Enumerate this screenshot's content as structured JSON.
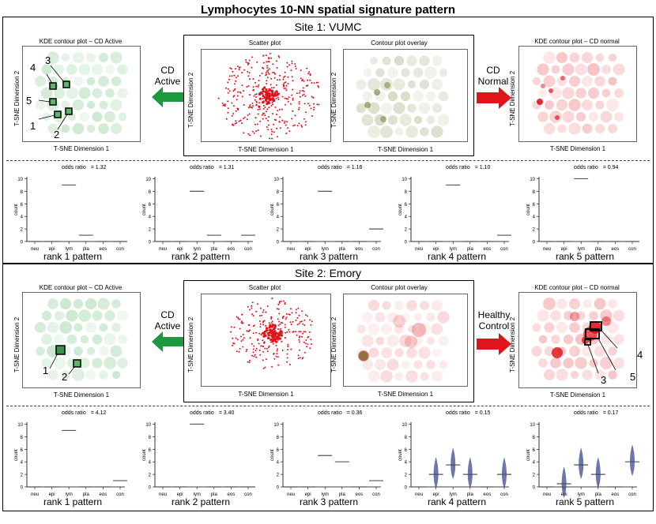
{
  "title": "Lymphocytes 10-NN spatial signature pattern",
  "sites": [
    {
      "heading": "Site 1: VUMC",
      "left_panel_title": "KDE contour plot – CD Active",
      "scatter_title": "Scatter plot",
      "overlay_title": "Contour plot overlay",
      "right_panel_title": "KDE contour plot – CD normal",
      "axis_x": "T-SNE Dimension 1",
      "axis_y": "T-SNE Dimension 2",
      "left_arrow_label": "CD Active",
      "right_arrow_label": "CD Normal",
      "left_markers": [
        "1",
        "2",
        "3",
        "4",
        "5"
      ],
      "right_markers": [],
      "patterns": [
        {
          "rank": "rank 1 pattern",
          "odds_label": "odds ratio",
          "odds_value": "= 1.32"
        },
        {
          "rank": "rank 2 pattern",
          "odds_label": "odds ratio",
          "odds_value": "= 1.31"
        },
        {
          "rank": "rank 3 pattern",
          "odds_label": "odds ratio",
          "odds_value": "= 1.16"
        },
        {
          "rank": "rank 4 pattern",
          "odds_label": "odds ratio",
          "odds_value": "= 1.10"
        },
        {
          "rank": "rank 5 pattern",
          "odds_label": "odds ratio",
          "odds_value": "= 0.94"
        }
      ]
    },
    {
      "heading": "Site 2: Emory",
      "left_panel_title": "KDE contour plot – CD Active",
      "scatter_title": "Scatter plot",
      "overlay_title": "Contour plot overlay",
      "right_panel_title": "KDE contour plot – CD normal",
      "axis_x": "T-SNE Dimension 1",
      "axis_y": "T-SNE Dimension 2",
      "left_arrow_label": "CD Active",
      "right_arrow_label": "Healthy Control",
      "left_markers": [
        "1",
        "2"
      ],
      "right_markers": [
        "3",
        "4",
        "5"
      ],
      "patterns": [
        {
          "rank": "rank 1 pattern",
          "odds_label": "odds ratio",
          "odds_value": "= 4.12"
        },
        {
          "rank": "rank 2 pattern",
          "odds_label": "odds ratio",
          "odds_value": "= 3.40"
        },
        {
          "rank": "rank 3 pattern",
          "odds_label": "odds ratio",
          "odds_value": "= 0.36"
        },
        {
          "rank": "rank 4 pattern",
          "odds_label": "odds ratio",
          "odds_value": "= 0.15"
        },
        {
          "rank": "rank 5 pattern",
          "odds_label": "odds ratio",
          "odds_value": "= 0.17"
        }
      ]
    }
  ],
  "chart_data": {
    "type": "box",
    "categories": [
      "neu",
      "epi",
      "lym",
      "pla",
      "eos",
      "con"
    ],
    "ylabel": "count",
    "yticks": [
      "0",
      "2",
      "4",
      "6",
      "8",
      "10"
    ],
    "ylim": [
      0,
      10
    ],
    "series": [
      {
        "name": "Site 1 rank 1",
        "values": [
          0,
          0,
          9,
          1,
          0,
          0
        ]
      },
      {
        "name": "Site 1 rank 2",
        "values": [
          0,
          0,
          8,
          1,
          0,
          1
        ]
      },
      {
        "name": "Site 1 rank 3",
        "values": [
          0,
          0,
          8,
          0,
          0,
          2
        ]
      },
      {
        "name": "Site 1 rank 4",
        "values": [
          0,
          0,
          9,
          0,
          0,
          1
        ]
      },
      {
        "name": "Site 1 rank 5",
        "values": [
          0,
          0,
          10,
          0,
          0,
          0
        ]
      },
      {
        "name": "Site 2 rank 1",
        "values": [
          0,
          0,
          9,
          0,
          0,
          1
        ]
      },
      {
        "name": "Site 2 rank 2",
        "values": [
          0,
          0,
          10,
          0,
          0,
          0
        ]
      },
      {
        "name": "Site 2 rank 3",
        "values": [
          0,
          0,
          5,
          4,
          0,
          1
        ]
      },
      {
        "name": "Site 2 rank 4",
        "values": [
          0,
          2,
          3.5,
          2,
          0,
          2
        ]
      },
      {
        "name": "Site 2 rank 5",
        "values": [
          0,
          0.5,
          3.5,
          2,
          0,
          4
        ]
      }
    ]
  }
}
